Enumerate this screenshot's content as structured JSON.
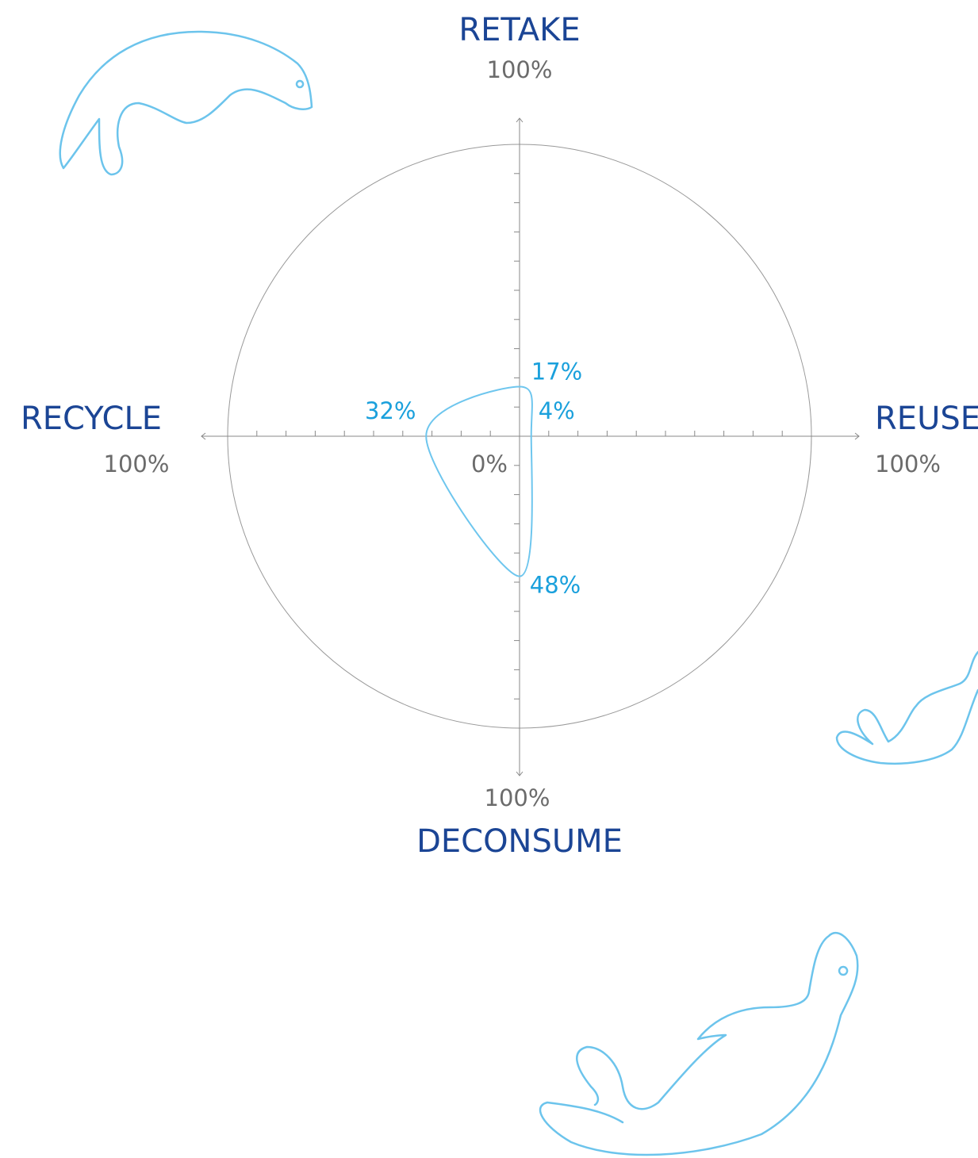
{
  "chart_data": {
    "type": "radar",
    "categories": [
      "RETAKE",
      "REUSE",
      "DECONSUME",
      "RECYCLE"
    ],
    "values": [
      17,
      4,
      48,
      32
    ],
    "value_labels": [
      "17%",
      "4%",
      "48%",
      "32%"
    ],
    "color": "#6ec6ee",
    "rlim": [
      0,
      100
    ],
    "rticks": [
      {
        "value": 0,
        "label": "0%"
      },
      {
        "value": 100,
        "label": "100%"
      }
    ],
    "rminorticks": [
      10,
      20,
      30,
      40,
      50,
      60,
      70,
      80,
      90
    ]
  }
}
